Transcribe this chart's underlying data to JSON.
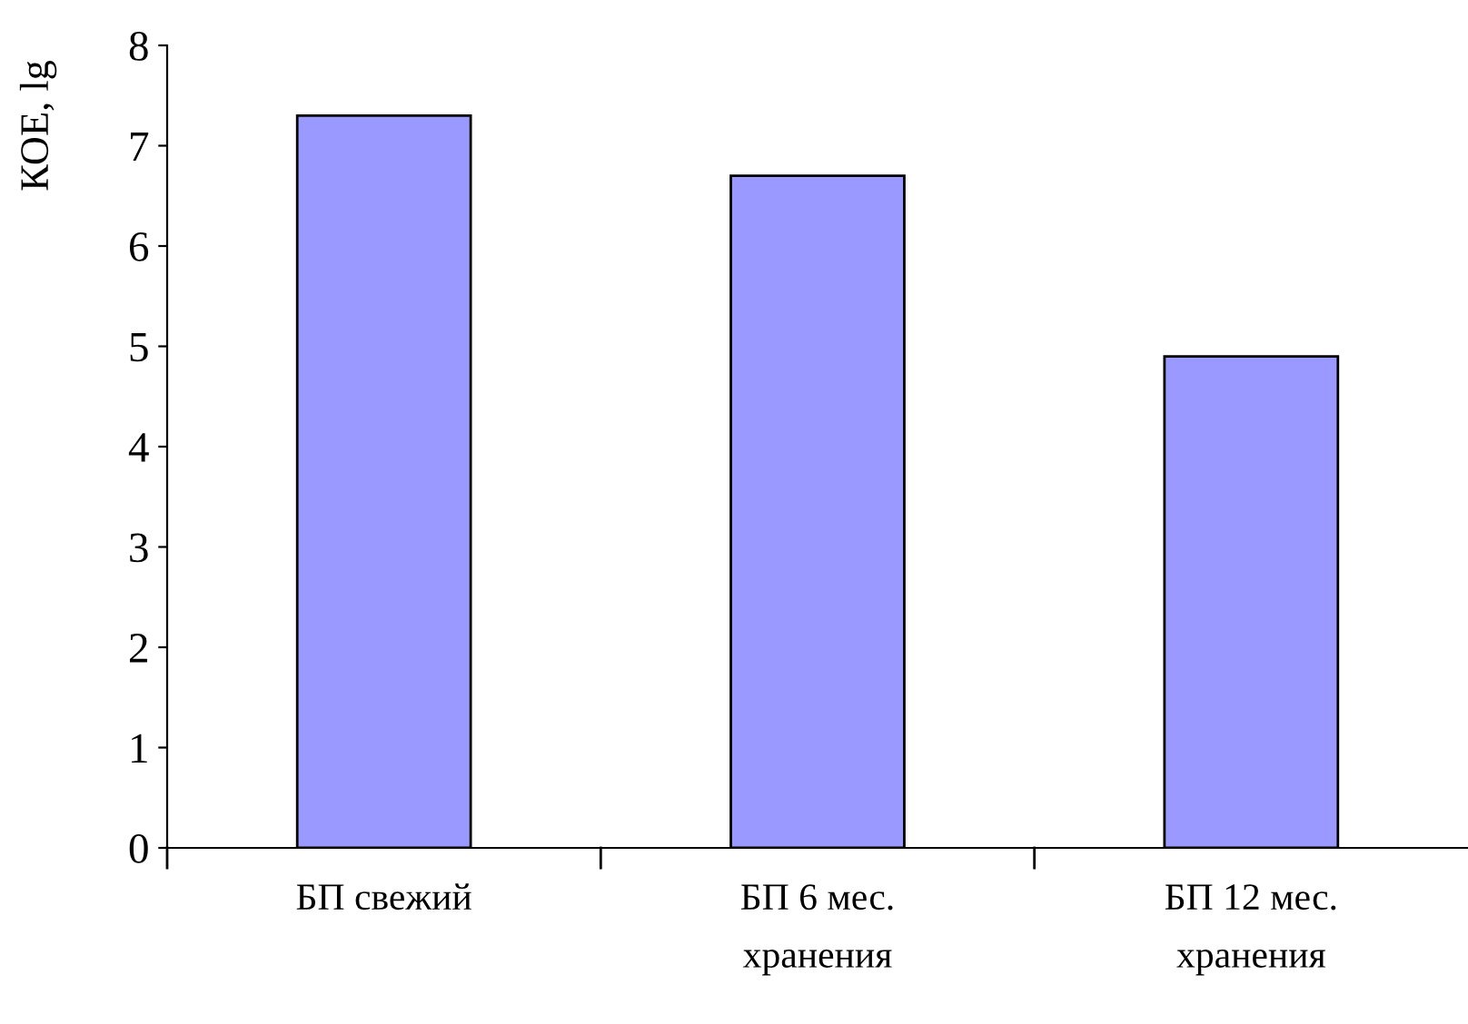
{
  "chart_data": {
    "type": "bar",
    "ylabel": "КОЕ, lg",
    "categories": [
      "БП свежий",
      "БП 6 мес.\nхранения",
      "БП 12 мес.\nхранения"
    ],
    "values": [
      7.3,
      6.7,
      4.9
    ],
    "color": "#9999ff",
    "ylim": [
      0,
      8
    ],
    "yticks": [
      0,
      1,
      2,
      3,
      4,
      5,
      6,
      7,
      8
    ],
    "grid": false,
    "legend": false
  }
}
